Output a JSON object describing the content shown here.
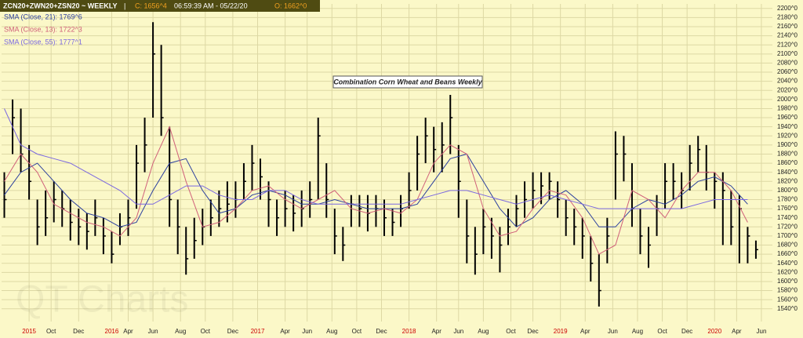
{
  "chart_data": {
    "type": "ohlc",
    "title": "Combination Corn Wheat and Beans Weekly",
    "header": {
      "symbol": "ZCN20+ZWN20+ZSN20 ~ WEEKLY",
      "separator": "|",
      "close": "C: 1656^4",
      "time": "06:59:39 AM - 05/22/20",
      "open": "O: 1662^0"
    },
    "watermark": "QT Charts",
    "color": "#000000",
    "x": [
      1,
      4,
      7,
      10,
      13,
      16,
      19,
      22,
      25,
      28,
      31,
      34,
      37,
      40,
      43,
      46,
      49,
      52,
      55,
      58,
      61,
      64,
      67,
      70,
      73,
      76,
      79,
      82,
      85,
      88,
      91,
      94,
      97,
      100,
      103,
      106,
      109,
      112,
      115,
      118,
      121,
      124,
      127,
      130,
      133,
      136,
      139,
      142,
      145,
      148,
      151,
      154,
      157,
      160,
      163,
      166,
      169,
      172,
      175,
      178,
      181,
      184,
      187,
      190,
      193,
      196,
      199,
      202,
      205,
      208,
      211,
      214,
      217,
      220,
      223,
      226,
      229,
      232,
      235,
      238,
      241,
      244,
      247,
      250,
      253,
      256,
      259,
      262,
      265,
      268,
      271,
      274
    ],
    "high": [
      1840,
      2000,
      1980,
      1900,
      1780,
      1800,
      1820,
      1800,
      1780,
      1760,
      1750,
      1780,
      1740,
      1710,
      1750,
      1780,
      1900,
      1960,
      2170,
      2120,
      1940,
      1780,
      1720,
      1740,
      1760,
      1780,
      1800,
      1820,
      1820,
      1860,
      1900,
      1870,
      1820,
      1780,
      1800,
      1790,
      1800,
      1820,
      1960,
      1860,
      1760,
      1720,
      1790,
      1790,
      1790,
      1790,
      1780,
      1760,
      1790,
      1840,
      1920,
      1960,
      1940,
      1950,
      2010,
      1900,
      1780,
      1720,
      1760,
      1740,
      1720,
      1760,
      1790,
      1820,
      1840,
      1840,
      1840,
      1820,
      1780,
      1760,
      1740,
      1700,
      1660,
      1740,
      1930,
      1920,
      1860,
      1760,
      1720,
      1790,
      1860,
      1860,
      1840,
      1900,
      1920,
      1900,
      1840,
      1840,
      1800,
      1790,
      1720,
      1690
    ],
    "low": [
      1740,
      1880,
      1840,
      1780,
      1680,
      1700,
      1730,
      1720,
      1690,
      1680,
      1670,
      1700,
      1660,
      1640,
      1680,
      1700,
      1760,
      1840,
      1960,
      1920,
      1720,
      1660,
      1615,
      1650,
      1680,
      1700,
      1720,
      1730,
      1740,
      1780,
      1800,
      1780,
      1720,
      1700,
      1720,
      1710,
      1720,
      1740,
      1780,
      1740,
      1660,
      1645,
      1720,
      1720,
      1710,
      1720,
      1700,
      1700,
      1720,
      1760,
      1800,
      1860,
      1840,
      1840,
      1880,
      1740,
      1640,
      1615,
      1660,
      1650,
      1620,
      1680,
      1720,
      1740,
      1760,
      1770,
      1780,
      1740,
      1700,
      1680,
      1650,
      1600,
      1545,
      1640,
      1780,
      1820,
      1720,
      1660,
      1630,
      1700,
      1760,
      1780,
      1760,
      1800,
      1840,
      1800,
      1760,
      1680,
      1680,
      1640,
      1640,
      1650
    ],
    "close": [
      1780,
      1960,
      1880,
      1820,
      1720,
      1740,
      1780,
      1760,
      1730,
      1720,
      1710,
      1740,
      1700,
      1660,
      1720,
      1740,
      1860,
      1900,
      2100,
      1960,
      1780,
      1720,
      1650,
      1690,
      1720,
      1740,
      1760,
      1770,
      1780,
      1820,
      1860,
      1830,
      1780,
      1740,
      1760,
      1750,
      1760,
      1780,
      1920,
      1780,
      1700,
      1680,
      1770,
      1760,
      1750,
      1760,
      1740,
      1730,
      1760,
      1800,
      1880,
      1920,
      1890,
      1900,
      1960,
      1820,
      1700,
      1660,
      1720,
      1700,
      1680,
      1720,
      1760,
      1780,
      1800,
      1810,
      1820,
      1780,
      1740,
      1720,
      1700,
      1640,
      1580,
      1700,
      1880,
      1880,
      1760,
      1700,
      1680,
      1760,
      1820,
      1820,
      1800,
      1860,
      1890,
      1840,
      1820,
      1800,
      1720,
      1760,
      1700,
      1670
    ],
    "series": [
      {
        "name": "SMA (Close, 21): 1769^6",
        "color": "#2b3f9e",
        "x": [
          1,
          7,
          13,
          19,
          25,
          31,
          37,
          43,
          49,
          55,
          61,
          67,
          73,
          79,
          85,
          91,
          97,
          103,
          109,
          115,
          121,
          127,
          133,
          139,
          145,
          151,
          157,
          163,
          169,
          175,
          181,
          187,
          193,
          199,
          205,
          211,
          217,
          223,
          229,
          235,
          241,
          247,
          253,
          259,
          265,
          271
        ],
        "values": [
          1790,
          1840,
          1860,
          1820,
          1780,
          1750,
          1740,
          1720,
          1730,
          1800,
          1860,
          1870,
          1800,
          1750,
          1760,
          1790,
          1800,
          1790,
          1770,
          1770,
          1780,
          1770,
          1760,
          1760,
          1760,
          1770,
          1820,
          1870,
          1880,
          1820,
          1760,
          1720,
          1740,
          1780,
          1800,
          1770,
          1720,
          1720,
          1760,
          1780,
          1770,
          1790,
          1820,
          1830,
          1810,
          1770
        ]
      },
      {
        "name": "SMA (Close, 13): 1722^3",
        "color": "#d0607a",
        "x": [
          1,
          7,
          13,
          19,
          25,
          31,
          37,
          43,
          49,
          55,
          61,
          67,
          73,
          79,
          85,
          91,
          97,
          103,
          109,
          115,
          121,
          127,
          133,
          139,
          145,
          151,
          157,
          163,
          169,
          175,
          181,
          187,
          193,
          199,
          205,
          211,
          217,
          223,
          229,
          235,
          241,
          247,
          253,
          259,
          265,
          271
        ],
        "values": [
          1820,
          1880,
          1840,
          1770,
          1750,
          1730,
          1720,
          1700,
          1740,
          1860,
          1940,
          1820,
          1720,
          1730,
          1760,
          1800,
          1810,
          1780,
          1760,
          1780,
          1800,
          1760,
          1750,
          1760,
          1750,
          1780,
          1860,
          1900,
          1880,
          1760,
          1700,
          1710,
          1760,
          1800,
          1790,
          1740,
          1660,
          1680,
          1800,
          1780,
          1740,
          1800,
          1840,
          1840,
          1800,
          1730
        ]
      },
      {
        "name": "SMA (Close, 55): 1777^1",
        "color": "#7b68e0",
        "x": [
          1,
          7,
          13,
          19,
          25,
          31,
          37,
          43,
          49,
          55,
          61,
          67,
          73,
          79,
          85,
          91,
          97,
          103,
          109,
          115,
          121,
          127,
          133,
          139,
          145,
          151,
          157,
          163,
          169,
          175,
          181,
          187,
          193,
          199,
          205,
          211,
          217,
          223,
          229,
          235,
          241,
          247,
          253,
          259,
          265,
          271
        ],
        "values": [
          1980,
          1900,
          1880,
          1870,
          1860,
          1840,
          1820,
          1800,
          1770,
          1770,
          1790,
          1810,
          1810,
          1790,
          1780,
          1780,
          1800,
          1800,
          1780,
          1770,
          1770,
          1770,
          1770,
          1770,
          1770,
          1780,
          1790,
          1800,
          1800,
          1790,
          1780,
          1770,
          1780,
          1790,
          1780,
          1770,
          1760,
          1760,
          1760,
          1760,
          1760,
          1760,
          1770,
          1780,
          1780,
          1780
        ]
      }
    ],
    "xlim": [
      0,
      280
    ],
    "xticks": [
      {
        "value": 10,
        "label": "2015"
      },
      {
        "value": 18,
        "label": "Oct"
      },
      {
        "value": 28,
        "label": "Dec"
      },
      {
        "value": 40,
        "label": "2016"
      },
      {
        "value": 46,
        "label": "Apr"
      },
      {
        "value": 55,
        "label": "Jun"
      },
      {
        "value": 65,
        "label": "Aug"
      },
      {
        "value": 74,
        "label": "Oct"
      },
      {
        "value": 84,
        "label": "Dec"
      },
      {
        "value": 93,
        "label": "2017"
      },
      {
        "value": 103,
        "label": "Apr"
      },
      {
        "value": 111,
        "label": "Jun"
      },
      {
        "value": 120,
        "label": "Aug"
      },
      {
        "value": 129,
        "label": "Oct"
      },
      {
        "value": 138,
        "label": "Dec"
      },
      {
        "value": 148,
        "label": "2018"
      },
      {
        "value": 158,
        "label": "Apr"
      },
      {
        "value": 166,
        "label": "Jun"
      },
      {
        "value": 175,
        "label": "Aug"
      },
      {
        "value": 185,
        "label": "Oct"
      },
      {
        "value": 193,
        "label": "Dec"
      },
      {
        "value": 203,
        "label": "2019"
      },
      {
        "value": 212,
        "label": "Apr"
      },
      {
        "value": 222,
        "label": "Jun"
      },
      {
        "value": 231,
        "label": "Aug"
      },
      {
        "value": 240,
        "label": "Oct"
      },
      {
        "value": 249,
        "label": "Dec"
      },
      {
        "value": 259,
        "label": "2020"
      },
      {
        "value": 267,
        "label": "Apr"
      },
      {
        "value": 276,
        "label": "Jun"
      }
    ],
    "year_label_color": "#cc0000",
    "ylim": [
      1512,
      2210
    ],
    "yticks": [
      {
        "value": 1540,
        "label": "1540^0"
      },
      {
        "value": 1560,
        "label": "1560^0"
      },
      {
        "value": 1580,
        "label": "1580^0"
      },
      {
        "value": 1600,
        "label": "1600^0"
      },
      {
        "value": 1620,
        "label": "1620^0"
      },
      {
        "value": 1640,
        "label": "1640^0"
      },
      {
        "value": 1660,
        "label": "1660^0"
      },
      {
        "value": 1680,
        "label": "1680^0"
      },
      {
        "value": 1700,
        "label": "1700^0"
      },
      {
        "value": 1720,
        "label": "1720^0"
      },
      {
        "value": 1740,
        "label": "1740^0"
      },
      {
        "value": 1760,
        "label": "1760^0"
      },
      {
        "value": 1780,
        "label": "1780^0"
      },
      {
        "value": 1800,
        "label": "1800^0"
      },
      {
        "value": 1820,
        "label": "1820^0"
      },
      {
        "value": 1840,
        "label": "1840^0"
      },
      {
        "value": 1860,
        "label": "1860^0"
      },
      {
        "value": 1880,
        "label": "1880^0"
      },
      {
        "value": 1900,
        "label": "1900^0"
      },
      {
        "value": 1920,
        "label": "1920^0"
      },
      {
        "value": 1940,
        "label": "1940^0"
      },
      {
        "value": 1960,
        "label": "1960^0"
      },
      {
        "value": 1980,
        "label": "1980^0"
      },
      {
        "value": 2000,
        "label": "2000^0"
      },
      {
        "value": 2020,
        "label": "2020^0"
      },
      {
        "value": 2040,
        "label": "2040^0"
      },
      {
        "value": 2060,
        "label": "2060^0"
      },
      {
        "value": 2080,
        "label": "2080^0"
      },
      {
        "value": 2100,
        "label": "2100^0"
      },
      {
        "value": 2120,
        "label": "2120^0"
      },
      {
        "value": 2140,
        "label": "2140^0"
      },
      {
        "value": 2160,
        "label": "2160^0"
      },
      {
        "value": 2180,
        "label": "2180^0"
      },
      {
        "value": 2200,
        "label": "2200^0"
      }
    ],
    "grid": true
  }
}
